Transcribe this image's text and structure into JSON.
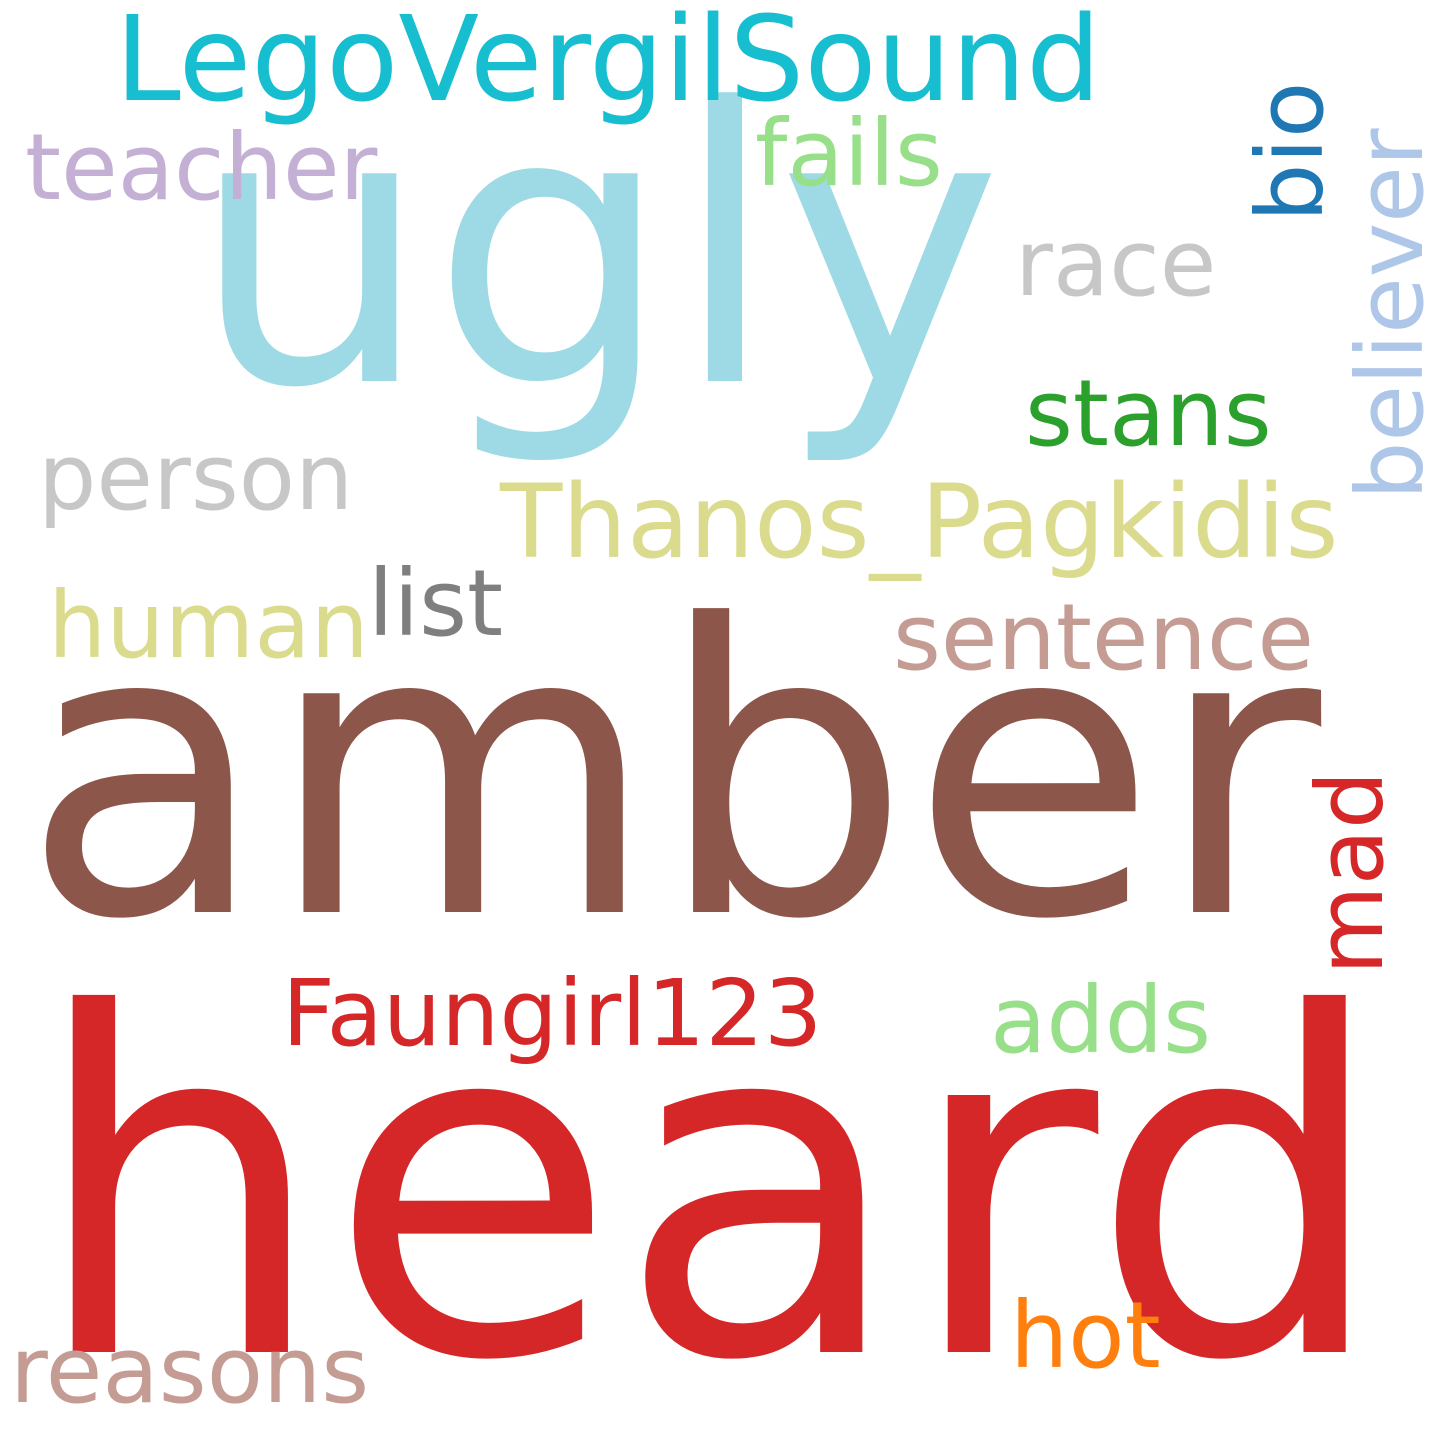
{
  "words": [
    {
      "text": "amber",
      "color": "#8c564b"
    },
    {
      "text": "heard",
      "color": "#d62728"
    },
    {
      "text": "ugly",
      "color": "#9edae5"
    },
    {
      "text": "LegoVergilSound",
      "color": "#17becf"
    },
    {
      "text": "Thanos_Pagkidis",
      "color": "#dbdb8d"
    },
    {
      "text": "Faungirl123",
      "color": "#d62728"
    },
    {
      "text": "sentence",
      "color": "#c49c94"
    },
    {
      "text": "teacher",
      "color": "#c5b0d5"
    },
    {
      "text": "person",
      "color": "#c7c7c7"
    },
    {
      "text": "human",
      "color": "#dbdb8d"
    },
    {
      "text": "list",
      "color": "#7f7f7f"
    },
    {
      "text": "fails",
      "color": "#98df8a"
    },
    {
      "text": "race",
      "color": "#c7c7c7"
    },
    {
      "text": "stans",
      "color": "#2ca02c"
    },
    {
      "text": "believer",
      "color": "#aec7e8"
    },
    {
      "text": "bio",
      "color": "#1f77b4"
    },
    {
      "text": "mad",
      "color": "#d62728"
    },
    {
      "text": "adds",
      "color": "#98df8a"
    },
    {
      "text": "hot",
      "color": "#ff7f0e"
    },
    {
      "text": "reasons",
      "color": "#c49c94"
    }
  ]
}
